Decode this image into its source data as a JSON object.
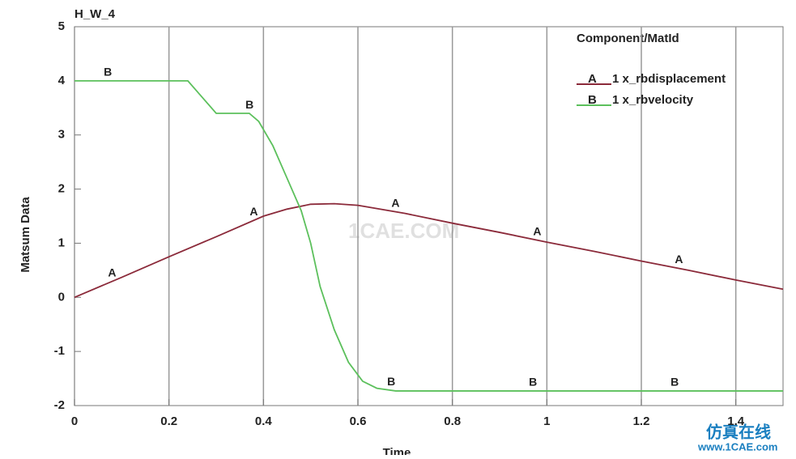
{
  "chart_data": {
    "type": "line",
    "title": "H_W_4",
    "x_label": "Time",
    "y_label": "Matsum Data",
    "legend_title": "Component/MatId",
    "x": [
      0,
      0.1,
      0.2,
      0.3,
      0.4,
      0.45,
      0.5,
      0.55,
      0.6,
      0.7,
      0.8,
      0.9,
      1.0,
      1.1,
      1.2,
      1.3,
      1.4,
      1.5
    ],
    "series": [
      {
        "name": "1 x_rbdisplacement",
        "symbol": "A",
        "color": "#8b2a3a",
        "values": [
          0,
          0.37,
          0.75,
          1.12,
          1.5,
          1.63,
          1.72,
          1.73,
          1.7,
          1.55,
          1.37,
          1.2,
          1.02,
          0.85,
          0.67,
          0.5,
          0.32,
          0.15
        ]
      },
      {
        "name": "1 x_rbvelocity",
        "symbol": "B",
        "color": "#5cc05c",
        "x": [
          0,
          0.24,
          0.27,
          0.3,
          0.37,
          0.39,
          0.42,
          0.45,
          0.48,
          0.5,
          0.52,
          0.55,
          0.58,
          0.61,
          0.64,
          0.68,
          1.5
        ],
        "values": [
          4,
          4,
          3.7,
          3.4,
          3.4,
          3.25,
          2.8,
          2.2,
          1.6,
          1.0,
          0.2,
          -0.6,
          -1.2,
          -1.55,
          -1.68,
          -1.73,
          -1.73
        ]
      }
    ],
    "xlim": [
      0,
      1.5
    ],
    "xticks": [
      0,
      0.2,
      0.4,
      0.6,
      0.8,
      1,
      1.2,
      1.4
    ],
    "ylim": [
      -2,
      5
    ],
    "yticks": [
      -2,
      -1,
      0,
      1,
      2,
      3,
      4,
      5
    ],
    "grid": "x",
    "watermark": "1CAE.COM",
    "corner_mark": "仿真在线",
    "corner_url": "www.1CAE.com"
  }
}
